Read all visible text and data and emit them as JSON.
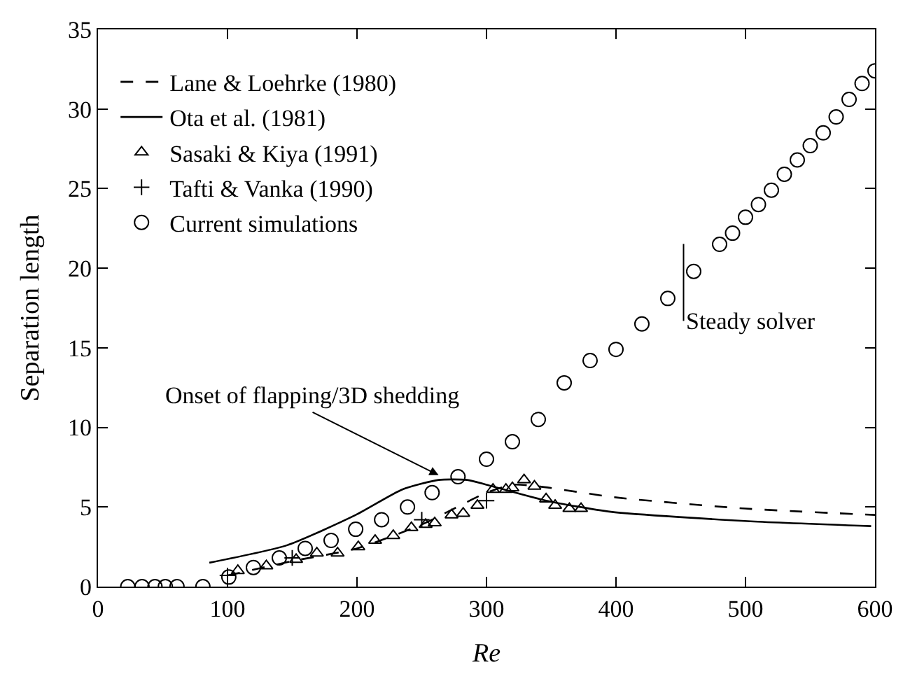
{
  "chart_data": {
    "type": "scatter",
    "xlabel": "Re",
    "ylabel": "Separation length",
    "xlim": [
      0,
      600
    ],
    "xticks": [
      0,
      100,
      200,
      300,
      400,
      500,
      600
    ],
    "ylim": [
      0,
      35
    ],
    "yticks": [
      0,
      5,
      10,
      15,
      20,
      25,
      30,
      35
    ],
    "legend": "top left",
    "series": [
      {
        "name": "Lane & Loehrke (1980)",
        "type": "line",
        "line_style": "dashed",
        "color": "#000000",
        "x": [
          100,
          150,
          200,
          250,
          300,
          320,
          340,
          400,
          500,
          600
        ],
        "values": [
          0.7,
          1.6,
          2.4,
          3.9,
          5.9,
          6.4,
          6.3,
          5.6,
          4.9,
          4.5
        ]
      },
      {
        "name": "Ota et al. (1981)",
        "type": "line",
        "line_style": "solid",
        "color": "#000000",
        "x": [
          86,
          146,
          199,
          235,
          263,
          285,
          300,
          346,
          396,
          504,
          597
        ],
        "values": [
          1.5,
          2.6,
          4.5,
          6.1,
          6.7,
          6.7,
          6.4,
          5.4,
          4.7,
          4.1,
          3.8
        ]
      },
      {
        "name": "Sasaki & Kiya (1991)",
        "marker": "triangle",
        "color": "#000000",
        "x": [
          108,
          130,
          153,
          169,
          185,
          201,
          214,
          228,
          242,
          253,
          260,
          273,
          282,
          293,
          305,
          315,
          320,
          329,
          337,
          346,
          353,
          364,
          373
        ],
        "values": [
          1.0,
          1.3,
          1.7,
          2.1,
          2.1,
          2.5,
          2.9,
          3.2,
          3.7,
          3.9,
          4.0,
          4.5,
          4.6,
          5.1,
          6.1,
          6.1,
          6.2,
          6.7,
          6.3,
          5.5,
          5.1,
          4.9,
          4.9
        ]
      },
      {
        "name": "Tafti & Vanka (1990)",
        "marker": "cross",
        "color": "#000000",
        "x": [
          100,
          150,
          250,
          300
        ],
        "values": [
          0.7,
          1.8,
          4.2,
          5.4
        ]
      },
      {
        "name": "Current simulations",
        "marker": "circle",
        "color": "#000000",
        "x": [
          23,
          34,
          44,
          52,
          61,
          81,
          101,
          120,
          140,
          160,
          180,
          199,
          219,
          239,
          258,
          278,
          300,
          320,
          340,
          360,
          380,
          400,
          420,
          440,
          460,
          480,
          490,
          500,
          510,
          520,
          530,
          540,
          550,
          560,
          570,
          580,
          590,
          600
        ],
        "values": [
          0,
          0,
          0,
          0,
          0,
          0,
          0.6,
          1.2,
          1.8,
          2.4,
          2.9,
          3.6,
          4.2,
          5.0,
          5.9,
          6.9,
          8.0,
          9.1,
          10.5,
          12.8,
          14.2,
          14.9,
          16.5,
          18.1,
          19.8,
          21.5,
          22.2,
          23.2,
          24.0,
          24.9,
          25.9,
          26.8,
          27.7,
          28.5,
          29.5,
          30.6,
          31.6,
          32.4
        ]
      }
    ],
    "annotations": [
      {
        "text": "Onset of flapping/3D shedding",
        "x": 263,
        "y": 7.0
      },
      "Steady solver"
    ]
  }
}
